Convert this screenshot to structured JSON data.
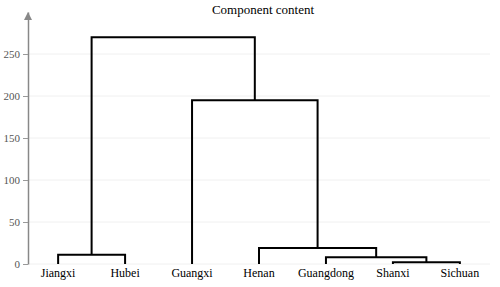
{
  "chart_data": {
    "type": "dendrogram",
    "title": "Component content",
    "ylim": [
      0,
      300
    ],
    "yticks": [
      0,
      50,
      100,
      150,
      200,
      250
    ],
    "grid": true,
    "color": "#000000",
    "tree": {
      "height": 270,
      "children": [
        {
          "height": 11,
          "children": [
            {
              "name": "Jiangxi"
            },
            {
              "name": "Hubei"
            }
          ]
        },
        {
          "height": 195,
          "children": [
            {
              "name": "Guangxi"
            },
            {
              "height": 19,
              "children": [
                {
                  "name": "Henan"
                },
                {
                  "height": 8,
                  "children": [
                    {
                      "name": "Guangdong"
                    },
                    {
                      "height": 2,
                      "children": [
                        {
                          "name": "Shanxi"
                        },
                        {
                          "name": "Sichuan"
                        }
                      ]
                    }
                  ]
                }
              ]
            }
          ]
        }
      ]
    }
  }
}
